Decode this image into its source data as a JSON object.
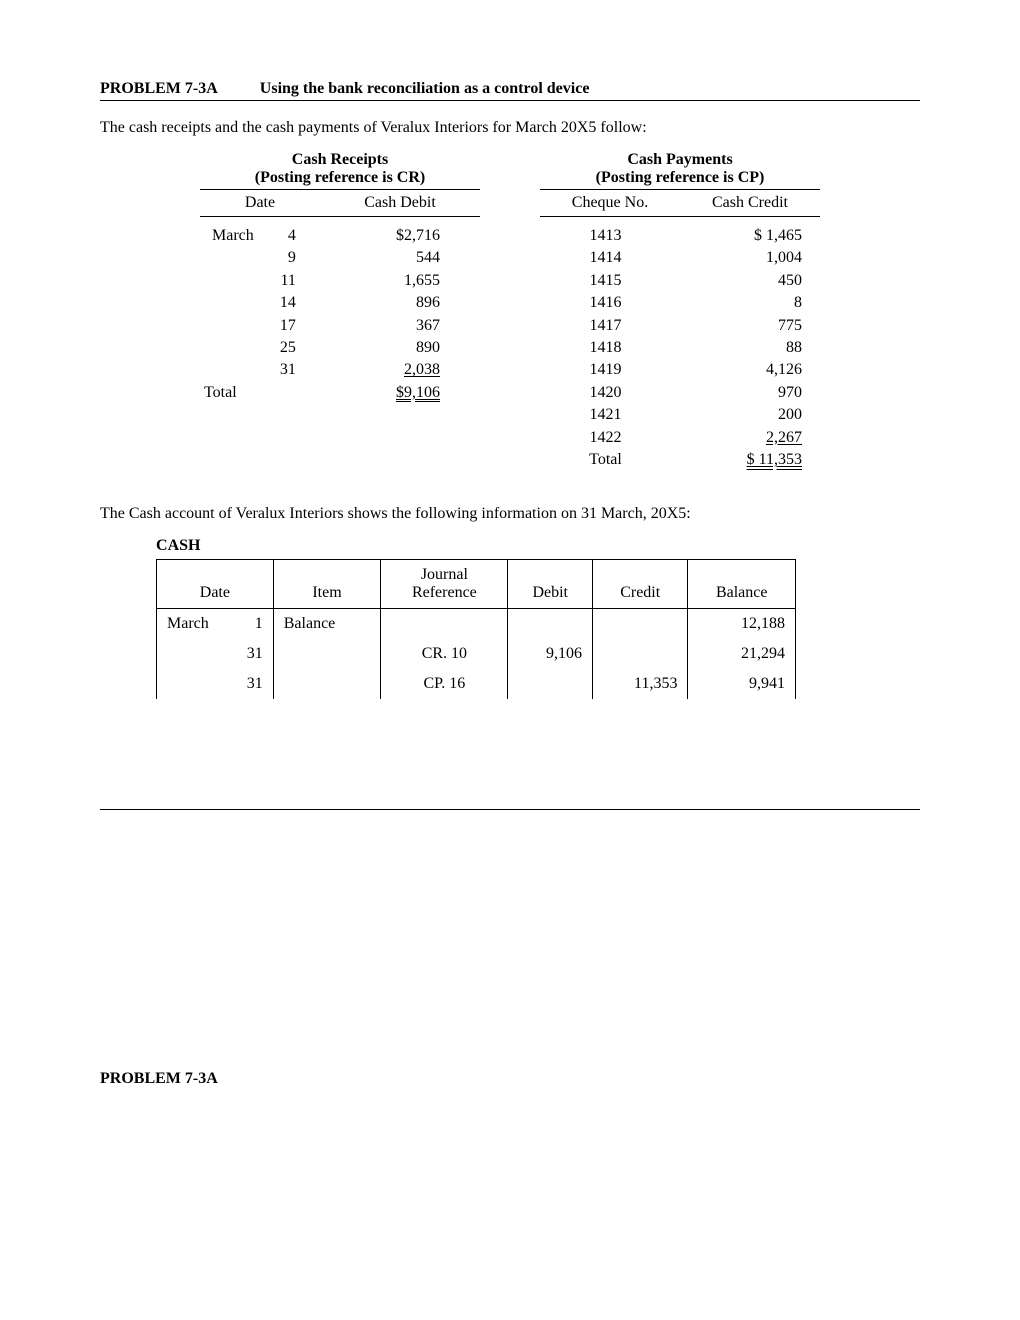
{
  "heading": {
    "problem": "PROBLEM 7-3A",
    "title": "Using the bank reconciliation as a control device"
  },
  "intro": "The cash receipts and the cash payments of Veralux Interiors for March 20X5 follow:",
  "receipts": {
    "header_line1": "Cash Receipts",
    "header_line2": "(Posting reference is CR)",
    "col_date": "Date",
    "col_debit": "Cash Debit",
    "month": "March",
    "rows": [
      {
        "day": "4",
        "amount": "$2,716"
      },
      {
        "day": "9",
        "amount": "544"
      },
      {
        "day": "11",
        "amount": "1,655"
      },
      {
        "day": "14",
        "amount": "896"
      },
      {
        "day": "17",
        "amount": "367"
      },
      {
        "day": "25",
        "amount": "890"
      },
      {
        "day": "31",
        "amount": "2,038"
      }
    ],
    "total_label": "Total",
    "total_amount": "$9,106"
  },
  "payments": {
    "header_line1": "Cash Payments",
    "header_line2": "(Posting reference is CP)",
    "col_cq": "Cheque No.",
    "col_credit": "Cash Credit",
    "rows": [
      {
        "cq": "1413",
        "amount": "$  1,465"
      },
      {
        "cq": "1414",
        "amount": "1,004"
      },
      {
        "cq": "1415",
        "amount": "450"
      },
      {
        "cq": "1416",
        "amount": "8"
      },
      {
        "cq": "1417",
        "amount": "775"
      },
      {
        "cq": "1418",
        "amount": "88"
      },
      {
        "cq": "1419",
        "amount": "4,126"
      },
      {
        "cq": "1420",
        "amount": "970"
      },
      {
        "cq": "1421",
        "amount": "200"
      },
      {
        "cq": "1422",
        "amount": "2,267"
      }
    ],
    "total_label": "Total",
    "total_amount": "$ 11,353"
  },
  "cash_intro": "The Cash account of Veralux Interiors shows the following information on 31 March, 20X5:",
  "cash_label_c": "C",
  "cash_label_ash": "ASH",
  "cash_table": {
    "headers": {
      "date": "Date",
      "item": "Item",
      "jr1": "Journal",
      "jr2": "Reference",
      "debit": "Debit",
      "credit": "Credit",
      "balance": "Balance"
    },
    "month": "March",
    "rows": [
      {
        "day": "1",
        "item": "Balance",
        "jr": "",
        "debit": "",
        "credit": "",
        "balance": "12,188"
      },
      {
        "day": "31",
        "item": "",
        "jr": "CR. 10",
        "debit": "9,106",
        "credit": "",
        "balance": "21,294"
      },
      {
        "day": "31",
        "item": "",
        "jr": "CP. 16",
        "debit": "",
        "credit": "11,353",
        "balance": "9,941"
      }
    ]
  },
  "footer_heading": "PROBLEM 7-3A"
}
